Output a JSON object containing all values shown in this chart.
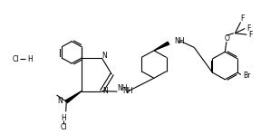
{
  "background_color": "#ffffff",
  "figsize": [
    3.09,
    1.48
  ],
  "dpi": 100,
  "bond_lw": 0.8,
  "font_size": 5.5,
  "xlim": [
    0,
    10
  ],
  "ylim": [
    0,
    5
  ]
}
